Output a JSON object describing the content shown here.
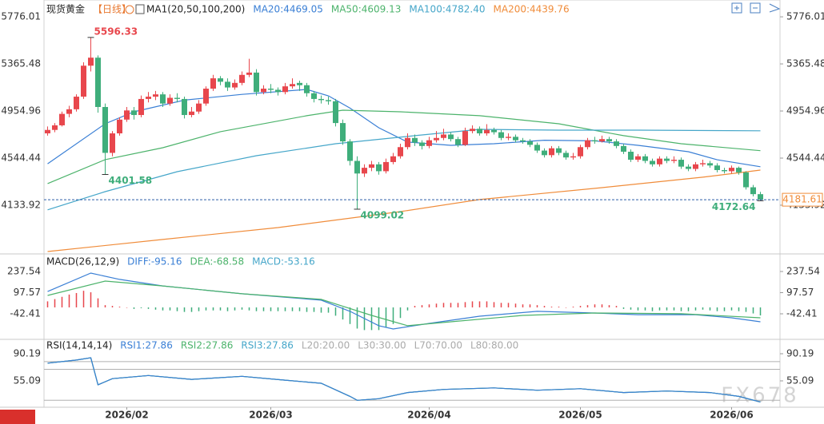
{
  "chart_data": [
    {
      "type": "candlestick",
      "title": "现货黄金",
      "period": "【日线】",
      "indicator": "MA1(20,50,100,200)",
      "xlim": [
        -0.5,
        99.5
      ],
      "ylim": [
        3709,
        5867
      ],
      "yticks": [
        5776.01,
        5365.48,
        4954.96,
        4544.44,
        4133.92
      ],
      "up_color": "#e8474d",
      "down_color": "#3fae7b",
      "candles": [
        [
          4760,
          4820,
          4740,
          4790
        ],
        [
          4790,
          4850,
          4770,
          4830
        ],
        [
          4830,
          4950,
          4820,
          4930
        ],
        [
          4930,
          5000,
          4900,
          4970
        ],
        [
          4970,
          5100,
          4950,
          5080
        ],
        [
          5080,
          5380,
          5060,
          5350
        ],
        [
          5350,
          5596.33,
          5300,
          5420
        ],
        [
          5420,
          5440,
          4940,
          4990
        ],
        [
          4990,
          5020,
          4401.58,
          4590
        ],
        [
          4590,
          4780,
          4560,
          4760
        ],
        [
          4760,
          4900,
          4740,
          4880
        ],
        [
          4880,
          4990,
          4860,
          4960
        ],
        [
          4960,
          4990,
          4880,
          4920
        ],
        [
          4920,
          5090,
          4900,
          5060
        ],
        [
          5060,
          5120,
          5030,
          5080
        ],
        [
          5080,
          5130,
          5050,
          5100
        ],
        [
          5100,
          5120,
          4990,
          5020
        ],
        [
          5020,
          5100,
          5000,
          5070
        ],
        [
          5070,
          5110,
          5030,
          5060
        ],
        [
          5060,
          5080,
          4890,
          4920
        ],
        [
          4920,
          4990,
          4900,
          4950
        ],
        [
          4950,
          5050,
          4930,
          5020
        ],
        [
          5020,
          5170,
          5000,
          5150
        ],
        [
          5150,
          5270,
          5130,
          5240
        ],
        [
          5240,
          5260,
          5180,
          5210
        ],
        [
          5210,
          5240,
          5130,
          5160
        ],
        [
          5160,
          5230,
          5140,
          5200
        ],
        [
          5200,
          5300,
          5180,
          5270
        ],
        [
          5270,
          5410,
          5250,
          5290
        ],
        [
          5290,
          5320,
          5090,
          5120
        ],
        [
          5120,
          5180,
          5100,
          5150
        ],
        [
          5150,
          5190,
          5110,
          5140
        ],
        [
          5140,
          5160,
          5090,
          5120
        ],
        [
          5120,
          5200,
          5100,
          5170
        ],
        [
          5170,
          5240,
          5150,
          5190
        ],
        [
          5200,
          5220,
          5130,
          5180
        ],
        [
          5180,
          5200,
          5080,
          5110
        ],
        [
          5110,
          5130,
          5030,
          5060
        ],
        [
          5060,
          5090,
          5020,
          5050
        ],
        [
          5050,
          5080,
          5010,
          5040
        ],
        [
          5040,
          5060,
          4820,
          4850
        ],
        [
          4850,
          4880,
          4660,
          4690
        ],
        [
          4690,
          4710,
          4480,
          4520
        ],
        [
          4520,
          4560,
          4099.02,
          4410
        ],
        [
          4410,
          4490,
          4380,
          4460
        ],
        [
          4460,
          4520,
          4430,
          4490
        ],
        [
          4490,
          4510,
          4400,
          4430
        ],
        [
          4430,
          4540,
          4410,
          4510
        ],
        [
          4510,
          4590,
          4490,
          4560
        ],
        [
          4560,
          4670,
          4540,
          4640
        ],
        [
          4640,
          4760,
          4620,
          4720
        ],
        [
          4720,
          4750,
          4650,
          4680
        ],
        [
          4680,
          4700,
          4620,
          4650
        ],
        [
          4650,
          4730,
          4630,
          4700
        ],
        [
          4700,
          4780,
          4680,
          4720
        ],
        [
          4720,
          4800,
          4700,
          4750
        ],
        [
          4750,
          4770,
          4690,
          4710
        ],
        [
          4710,
          4730,
          4640,
          4660
        ],
        [
          4660,
          4810,
          4650,
          4780
        ],
        [
          4780,
          4830,
          4760,
          4800
        ],
        [
          4800,
          4820,
          4740,
          4760
        ],
        [
          4760,
          4840,
          4740,
          4790
        ],
        [
          4790,
          4810,
          4750,
          4770
        ],
        [
          4770,
          4790,
          4700,
          4720
        ],
        [
          4720,
          4760,
          4700,
          4730
        ],
        [
          4730,
          4750,
          4680,
          4700
        ],
        [
          4700,
          4720,
          4670,
          4690
        ],
        [
          4690,
          4710,
          4640,
          4660
        ],
        [
          4660,
          4680,
          4590,
          4610
        ],
        [
          4610,
          4630,
          4550,
          4570
        ],
        [
          4570,
          4650,
          4550,
          4630
        ],
        [
          4630,
          4650,
          4570,
          4590
        ],
        [
          4590,
          4610,
          4530,
          4550
        ],
        [
          4550,
          4590,
          4530,
          4560
        ],
        [
          4560,
          4660,
          4540,
          4640
        ],
        [
          4640,
          4720,
          4620,
          4700
        ],
        [
          4700,
          4730,
          4670,
          4690
        ],
        [
          4690,
          4740,
          4680,
          4710
        ],
        [
          4710,
          4730,
          4670,
          4690
        ],
        [
          4690,
          4710,
          4630,
          4650
        ],
        [
          4650,
          4670,
          4580,
          4600
        ],
        [
          4600,
          4620,
          4510,
          4530
        ],
        [
          4530,
          4580,
          4510,
          4560
        ],
        [
          4560,
          4580,
          4500,
          4520
        ],
        [
          4520,
          4540,
          4470,
          4490
        ],
        [
          4490,
          4560,
          4470,
          4540
        ],
        [
          4540,
          4560,
          4500,
          4520
        ],
        [
          4520,
          4560,
          4500,
          4530
        ],
        [
          4530,
          4550,
          4450,
          4470
        ],
        [
          4470,
          4490,
          4430,
          4450
        ],
        [
          4450,
          4510,
          4430,
          4490
        ],
        [
          4490,
          4530,
          4470,
          4500
        ],
        [
          4500,
          4520,
          4460,
          4480
        ],
        [
          4480,
          4500,
          4420,
          4440
        ],
        [
          4440,
          4460,
          4410,
          4430
        ],
        [
          4430,
          4480,
          4410,
          4460
        ],
        [
          4460,
          4470,
          4400,
          4420
        ],
        [
          4420,
          4430,
          4270,
          4290
        ],
        [
          4290,
          4310,
          4210,
          4230
        ],
        [
          4230,
          4250,
          4172.64,
          4181.61
        ]
      ],
      "series": [
        {
          "name": "MA20",
          "legend": "MA20:4469.05",
          "color": "#3a7fd5",
          "x": [
            0,
            8,
            12,
            19,
            27,
            36,
            39,
            42,
            46,
            50,
            56,
            62,
            69,
            76,
            82,
            89,
            93,
            99
          ],
          "values": [
            4495,
            4844,
            4948,
            5050,
            5100,
            5143,
            5087,
            4980,
            4809,
            4684,
            4656,
            4670,
            4700,
            4695,
            4656,
            4600,
            4530,
            4469.05
          ]
        },
        {
          "name": "MA50",
          "legend": "MA50:4609.13",
          "color": "#4cb36b",
          "x": [
            0,
            8,
            16,
            24,
            36,
            41,
            49,
            60,
            71,
            80,
            88,
            99
          ],
          "values": [
            4322,
            4531,
            4635,
            4775,
            4914,
            4962,
            4948,
            4914,
            4844,
            4740,
            4670,
            4609.13
          ]
        },
        {
          "name": "MA100",
          "legend": "MA100:4782.40",
          "color": "#45a6c9",
          "x": [
            0,
            8,
            18,
            29,
            40,
            51,
            60,
            71,
            82,
            99
          ],
          "values": [
            4093,
            4252,
            4426,
            4565,
            4670,
            4740,
            4795,
            4788,
            4788,
            4782.4
          ]
        },
        {
          "name": "MA200",
          "legend": "MA200:4439.76",
          "color": "#f08c3a",
          "x": [
            0,
            16,
            32,
            49,
            60,
            77,
            91,
            99
          ],
          "values": [
            3730,
            3835,
            3939,
            4078,
            4183,
            4287,
            4378,
            4439.76
          ]
        }
      ],
      "annotations": [
        {
          "x": 6,
          "value": 5596.33
        },
        {
          "x": 8,
          "value": 4401.58
        },
        {
          "x": 43,
          "value": 4099.02
        },
        {
          "x": 99,
          "value": 4172.64
        }
      ],
      "last_price": 4181.61
    },
    {
      "type": "macd",
      "title": "MACD(26,12,9)",
      "xlim": [
        -0.5,
        99.5
      ],
      "ylim": [
        -185,
        311.5
      ],
      "yticks": [
        237.54,
        97.57,
        -42.41
      ],
      "up_color": "#e8474d",
      "down_color": "#3fae7b",
      "series": [
        {
          "name": "DIFF",
          "legend": "DIFF:-95.16",
          "color": "#3a7fd5",
          "x": [
            0,
            6,
            10,
            16,
            27,
            38,
            42,
            46,
            48,
            53,
            60,
            68,
            76,
            82,
            90,
            95,
            99
          ],
          "values": [
            105,
            227,
            185,
            142,
            90,
            48,
            -26,
            -121,
            -143,
            -106,
            -58,
            -26,
            -37,
            -48,
            -48,
            -69,
            -95.16
          ]
        },
        {
          "name": "DEA",
          "legend": "DEA:-68.58",
          "color": "#4cb36b",
          "x": [
            0,
            8,
            16,
            27,
            38,
            45,
            50,
            56,
            66,
            76,
            88,
            99
          ],
          "values": [
            79,
            174,
            142,
            90,
            53,
            -53,
            -121,
            -95,
            -53,
            -37,
            -42,
            -68.58
          ]
        }
      ],
      "histogram": {
        "name": "MACD",
        "legend": "MACD:-53.16",
        "color": "#45a6c9",
        "values": [
          40,
          55,
          70,
          85,
          95,
          110,
          100,
          60,
          15,
          10,
          5,
          0,
          -10,
          -5,
          -10,
          -15,
          -20,
          -20,
          -25,
          -30,
          -30,
          -25,
          -20,
          -20,
          -20,
          -25,
          -20,
          -15,
          -20,
          -25,
          -25,
          -25,
          -25,
          -25,
          -25,
          -25,
          -30,
          -30,
          -35,
          -35,
          -55,
          -80,
          -110,
          -140,
          -150,
          -150,
          -150,
          -130,
          -110,
          -70,
          -20,
          10,
          15,
          20,
          25,
          30,
          30,
          30,
          35,
          40,
          40,
          40,
          35,
          30,
          30,
          25,
          20,
          20,
          15,
          10,
          5,
          5,
          0,
          5,
          10,
          15,
          20,
          20,
          15,
          10,
          -10,
          -15,
          -20,
          -20,
          -25,
          -20,
          -20,
          -20,
          -25,
          -25,
          -20,
          -15,
          -20,
          -25,
          -25,
          -20,
          -25,
          -30,
          -40,
          -53.16
        ]
      }
    },
    {
      "type": "line",
      "title": "RSI(14,14,14)",
      "xlim": [
        -0.5,
        99.5
      ],
      "ylim": [
        21,
        103.6
      ],
      "yticks": [
        90.19,
        55.09
      ],
      "series": [
        {
          "name": "RSI1",
          "legend": "RSI1:27.86",
          "color": "#3a7fd5",
          "x": [
            0,
            4,
            6,
            7,
            9,
            14,
            20,
            27,
            33,
            38,
            42,
            43,
            46,
            50,
            55,
            62,
            68,
            74,
            80,
            86,
            92,
            96,
            99
          ],
          "values": [
            78,
            82,
            85,
            50,
            58,
            62,
            57,
            61,
            56,
            52,
            35,
            30,
            32,
            40,
            44,
            46,
            43,
            45,
            40,
            42,
            40,
            35,
            27.86
          ]
        },
        {
          "name": "RSI2",
          "legend": "RSI2:27.86",
          "color": "#4cb36b",
          "x": [
            0,
            4,
            6,
            7,
            9,
            14,
            20,
            27,
            33,
            38,
            42,
            43,
            46,
            50,
            55,
            62,
            68,
            74,
            80,
            86,
            92,
            96,
            99
          ],
          "values": [
            78,
            82,
            85,
            50,
            58,
            62,
            57,
            61,
            56,
            52,
            35,
            30,
            32,
            40,
            44,
            46,
            43,
            45,
            40,
            42,
            40,
            35,
            27.86
          ]
        },
        {
          "name": "RSI3",
          "legend": "RSI3:27.86",
          "color": "#45a6c9",
          "x": [
            0,
            4,
            6,
            7,
            9,
            14,
            20,
            27,
            33,
            38,
            42,
            43,
            46,
            50,
            55,
            62,
            68,
            74,
            80,
            86,
            92,
            96,
            99
          ],
          "values": [
            78,
            82,
            85,
            50,
            58,
            62,
            57,
            61,
            56,
            52,
            35,
            30,
            32,
            40,
            44,
            46,
            43,
            45,
            40,
            42,
            40,
            35,
            27.86
          ]
        }
      ],
      "levels": [
        {
          "value": 20,
          "label": "L20:20.00"
        },
        {
          "value": 30,
          "label": "L30:30.00"
        },
        {
          "value": 70,
          "label": "L70:70.00"
        },
        {
          "value": 80,
          "label": "L80:80.00"
        }
      ],
      "xticks": [
        {
          "value": 11,
          "label": "2026/02"
        },
        {
          "value": 31,
          "label": "2026/03"
        },
        {
          "value": 53,
          "label": "2026/04"
        },
        {
          "value": 74,
          "label": "2026/05"
        },
        {
          "value": 95,
          "label": "2026/06"
        }
      ]
    }
  ],
  "watermark": "FX678"
}
